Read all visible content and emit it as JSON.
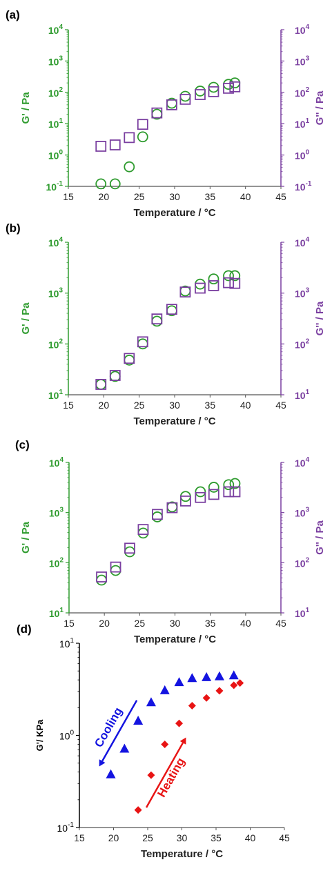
{
  "chart_data": [
    {
      "type": "scatter",
      "panel_label": "(a)",
      "xlabel": "Temperature  / °C",
      "ylabel_left": "G' / Pa",
      "ylabel_right": "G'' / Pa",
      "xlim": [
        15,
        45
      ],
      "xticks": [
        15,
        20,
        25,
        30,
        35,
        40,
        45
      ],
      "ylim": [
        0.1,
        10000
      ],
      "y_scale": "log",
      "yticks": [
        {
          "base": "10",
          "exp": "-1"
        },
        {
          "base": "10",
          "exp": "0"
        },
        {
          "base": "10",
          "exp": "1"
        },
        {
          "base": "10",
          "exp": "2"
        },
        {
          "base": "10",
          "exp": "3"
        },
        {
          "base": "10",
          "exp": "4"
        }
      ],
      "left_axis_color": "#2e9b2e",
      "right_axis_color": "#7a3fa0",
      "series": [
        {
          "marker": "circle-open",
          "color": "#2e9b2e",
          "axis": "left",
          "x": [
            19.6,
            21.6,
            23.6,
            25.5,
            27.5,
            29.6,
            31.5,
            33.6,
            35.5,
            37.6,
            38.5
          ],
          "y": [
            0.12,
            0.12,
            0.42,
            3.8,
            20,
            45,
            75,
            110,
            145,
            180,
            200
          ]
        },
        {
          "marker": "square-open",
          "color": "#7a3fa0",
          "axis": "right",
          "x": [
            19.6,
            21.6,
            23.6,
            25.5,
            27.5,
            29.6,
            31.5,
            33.6,
            35.5,
            37.6,
            38.5
          ],
          "y": [
            1.9,
            2.1,
            3.6,
            9.5,
            22,
            40,
            60,
            85,
            105,
            135,
            150
          ]
        }
      ]
    },
    {
      "type": "scatter",
      "panel_label": "(b)",
      "xlabel": "Temperature  / °C",
      "ylabel_left": "G' / Pa",
      "ylabel_right": "G'' / Pa",
      "xlim": [
        15,
        45
      ],
      "xticks": [
        15,
        20,
        25,
        30,
        35,
        40,
        45
      ],
      "ylim": [
        10,
        10000
      ],
      "y_scale": "log",
      "yticks": [
        {
          "base": "10",
          "exp": "1"
        },
        {
          "base": "10",
          "exp": "2"
        },
        {
          "base": "10",
          "exp": "3"
        },
        {
          "base": "10",
          "exp": "4"
        }
      ],
      "left_axis_color": "#2e9b2e",
      "right_axis_color": "#7a3fa0",
      "series": [
        {
          "marker": "circle-open",
          "color": "#2e9b2e",
          "axis": "left",
          "x": [
            19.6,
            21.6,
            23.6,
            25.5,
            27.5,
            29.6,
            31.5,
            33.6,
            35.5,
            37.6,
            38.5
          ],
          "y": [
            16,
            23,
            48,
            100,
            280,
            450,
            1100,
            1500,
            1900,
            2200,
            2200
          ]
        },
        {
          "marker": "square-open",
          "color": "#7a3fa0",
          "axis": "right",
          "x": [
            19.6,
            21.6,
            23.6,
            25.5,
            27.5,
            29.6,
            31.5,
            33.6,
            35.5,
            37.6,
            38.5
          ],
          "y": [
            16,
            24,
            52,
            110,
            310,
            480,
            1050,
            1250,
            1400,
            1600,
            1550
          ]
        }
      ]
    },
    {
      "type": "scatter",
      "panel_label": "(c)",
      "xlabel": "Temperature / °C",
      "ylabel_left": "G' / Pa",
      "ylabel_right": "G'' / Pa",
      "xlim": [
        15,
        45
      ],
      "xticks": [
        15,
        20,
        25,
        30,
        35,
        40,
        45
      ],
      "ylim": [
        10,
        10000
      ],
      "y_scale": "log",
      "yticks": [
        {
          "base": "10",
          "exp": "1"
        },
        {
          "base": "10",
          "exp": "2"
        },
        {
          "base": "10",
          "exp": "3"
        },
        {
          "base": "10",
          "exp": "4"
        }
      ],
      "left_axis_color": "#2e9b2e",
      "right_axis_color": "#7a3fa0",
      "series": [
        {
          "marker": "circle-open",
          "color": "#2e9b2e",
          "axis": "left",
          "x": [
            19.6,
            21.6,
            23.6,
            25.5,
            27.5,
            29.6,
            31.5,
            33.6,
            35.5,
            37.6,
            38.5
          ],
          "y": [
            45,
            70,
            165,
            390,
            820,
            1300,
            2100,
            2600,
            3200,
            3600,
            3800
          ]
        },
        {
          "marker": "square-open",
          "color": "#7a3fa0",
          "axis": "right",
          "x": [
            19.6,
            21.6,
            23.6,
            25.5,
            27.5,
            29.6,
            31.5,
            33.6,
            35.5,
            37.6,
            38.5
          ],
          "y": [
            52,
            82,
            195,
            460,
            920,
            1250,
            1700,
            2000,
            2300,
            2600,
            2600
          ]
        }
      ]
    },
    {
      "type": "scatter",
      "panel_label": "(d)",
      "xlabel": "Temperature / °C",
      "ylabel_left": "G'/ KPa",
      "xlim": [
        15,
        45
      ],
      "xticks": [
        15,
        20,
        25,
        30,
        35,
        40,
        45
      ],
      "ylim": [
        0.1,
        10
      ],
      "y_scale": "log",
      "yticks": [
        {
          "base": "10",
          "exp": "-1"
        },
        {
          "base": "10",
          "exp": "0"
        },
        {
          "base": "10",
          "exp": "1"
        }
      ],
      "left_axis_color": "#000000",
      "series": [
        {
          "marker": "triangle-filled",
          "color": "#1414e0",
          "axis": "left",
          "x": [
            19.6,
            21.6,
            23.6,
            25.5,
            27.5,
            29.6,
            31.5,
            33.6,
            35.5,
            37.6
          ],
          "y": [
            0.38,
            0.72,
            1.45,
            2.3,
            3.1,
            3.8,
            4.2,
            4.3,
            4.4,
            4.5
          ]
        },
        {
          "marker": "diamond-filled",
          "color": "#e81414",
          "axis": "left",
          "x": [
            23.6,
            25.5,
            27.5,
            29.6,
            31.5,
            33.6,
            35.5,
            37.6,
            38.5
          ],
          "y": [
            0.155,
            0.37,
            0.8,
            1.35,
            2.1,
            2.55,
            3.05,
            3.5,
            3.7
          ]
        }
      ],
      "annotations": [
        {
          "text": "Cooling",
          "color": "#1414e0",
          "arrow": {
            "from": [
              23.4,
              2.4
            ],
            "to": [
              17.9,
              0.46
            ]
          }
        },
        {
          "text": "Heating",
          "color": "#e81414",
          "arrow": {
            "from": [
              24.8,
              0.165
            ],
            "to": [
              30.6,
              0.95
            ]
          }
        }
      ]
    }
  ]
}
